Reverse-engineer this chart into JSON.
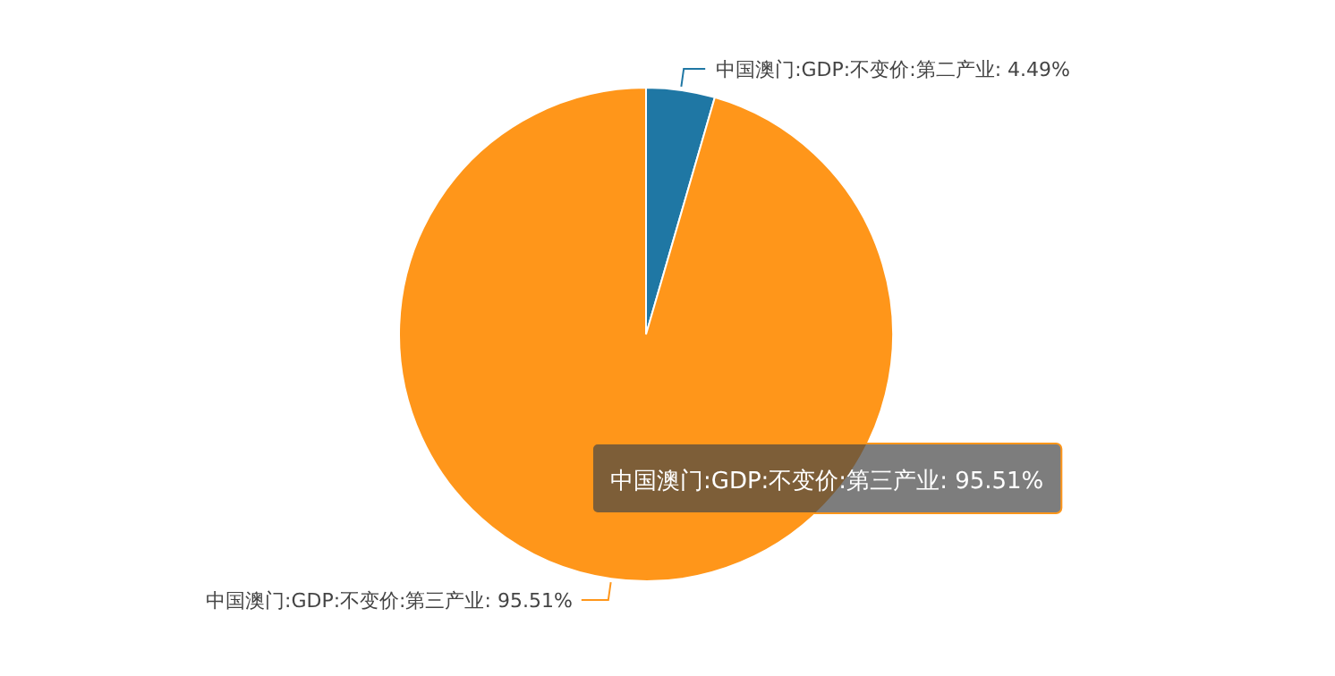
{
  "chart_data": {
    "type": "pie",
    "categories": [
      "中国澳门:GDP:不变价:第二产业",
      "中国澳门:GDP:不变价:第三产业"
    ],
    "values": [
      4.49,
      95.51
    ],
    "colors": [
      "#1f77a4",
      "#ff961a"
    ],
    "value_labels": [
      ": 4.49%",
      ": 95.51%"
    ],
    "annotations": [
      "中国澳门:GDP:不变价:第三产业: 95.51%"
    ]
  }
}
